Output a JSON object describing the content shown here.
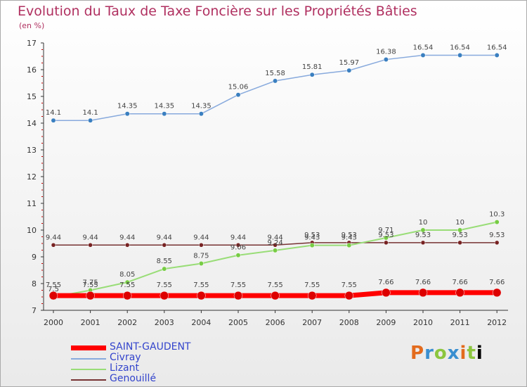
{
  "header": {
    "title": "Evolution du Taux de Taxe Foncière sur les Propriétés Bâties",
    "unit": "(en %)"
  },
  "logo": {
    "letters": [
      "P",
      "r",
      "o",
      "x",
      "i",
      "t",
      "i"
    ]
  },
  "colors": {
    "saint_gaudent": "#ff0000",
    "civray": "#88aadd",
    "lizant": "#99dd77",
    "genouille": "#773333",
    "axis": "#333333",
    "tick_mark": "#cc0000",
    "label": "#444444"
  },
  "chart_data": {
    "type": "line",
    "title": "Evolution du Taux de Taxe Foncière sur les Propriétés Bâties",
    "ylabel": "(en %)",
    "xlabel": "",
    "x": [
      "2000",
      "2001",
      "2002",
      "2003",
      "2004",
      "2005",
      "2006",
      "2007",
      "2008",
      "2009",
      "2010",
      "2011",
      "2012"
    ],
    "ylim": [
      7,
      17
    ],
    "yticks": [
      "7",
      "8",
      "9",
      "10",
      "11",
      "12",
      "13",
      "14",
      "15",
      "16",
      "17"
    ],
    "legend_position": "bottom-left",
    "series": [
      {
        "name": "SAINT-GAUDENT",
        "values": [
          7.55,
          7.55,
          7.55,
          7.55,
          7.55,
          7.55,
          7.55,
          7.55,
          7.55,
          7.66,
          7.66,
          7.66,
          7.66
        ],
        "labels": [
          "7.55",
          "7.55",
          "7.55",
          "7.55",
          "7.55",
          "7.55",
          "7.55",
          "7.55",
          "7.55",
          "7.66",
          "7.66",
          "7.66",
          "7.66"
        ]
      },
      {
        "name": "Civray",
        "values": [
          14.1,
          14.1,
          14.35,
          14.35,
          14.35,
          15.06,
          15.58,
          15.81,
          15.97,
          16.38,
          16.54,
          16.54,
          16.54
        ],
        "labels": [
          "14.1",
          "14.1",
          "14.35",
          "14.35",
          "14.35",
          "15.06",
          "15.58",
          "15.81",
          "15.97",
          "16.38",
          "16.54",
          "16.54",
          "16.54"
        ]
      },
      {
        "name": "Lizant",
        "values": [
          7.5,
          7.75,
          8.05,
          8.55,
          8.75,
          9.06,
          9.24,
          9.43,
          9.43,
          9.71,
          10,
          10,
          10.3
        ],
        "labels": [
          "7.5",
          "7.75",
          "8.05",
          "8.55",
          "8.75",
          "9.06",
          "9.24",
          "9.43",
          "9.43",
          "9.71",
          "10",
          "10",
          "10.3"
        ]
      },
      {
        "name": "Genouillé",
        "values": [
          9.44,
          9.44,
          9.44,
          9.44,
          9.44,
          9.44,
          9.44,
          9.53,
          9.53,
          9.53,
          9.53,
          9.53,
          9.53
        ],
        "labels": [
          "9.44",
          "9.44",
          "9.44",
          "9.44",
          "9.44",
          "9.44",
          "9.44",
          "9.53",
          "9.53",
          "9.53",
          "9.53",
          "9.53",
          "9.53"
        ]
      }
    ]
  }
}
